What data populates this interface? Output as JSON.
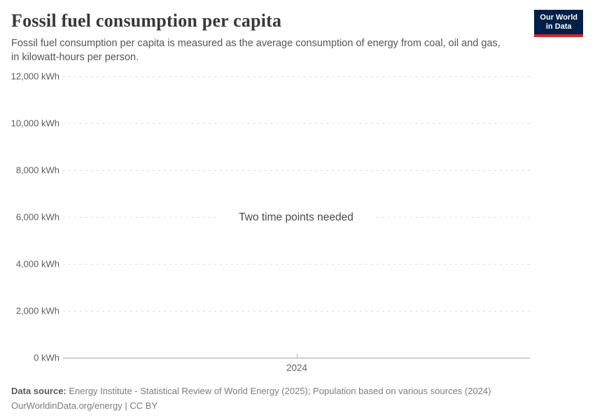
{
  "header": {
    "title": "Fossil fuel consumption per capita",
    "subtitle_lines": [
      "Fossil fuel consumption per capita is measured as the average consumption of energy from coal, oil and gas,",
      "in kilowatt-hours per person."
    ]
  },
  "logo": {
    "line1": "Our World",
    "line2": "in Data"
  },
  "chart_data": {
    "type": "line",
    "title": "Fossil fuel consumption per capita",
    "ylabel": "kWh",
    "ylim": [
      0,
      12000
    ],
    "grid": true,
    "empty_state_message": "Two time points needed",
    "yticks": [
      {
        "value": 12000,
        "label": "12,000 kWh"
      },
      {
        "value": 10000,
        "label": "10,000 kWh"
      },
      {
        "value": 8000,
        "label": "8,000 kWh"
      },
      {
        "value": 6000,
        "label": "6,000 kWh"
      },
      {
        "value": 4000,
        "label": "4,000 kWh"
      },
      {
        "value": 2000,
        "label": "2,000 kWh"
      },
      {
        "value": 0,
        "label": "0 kWh"
      }
    ],
    "xticks": [
      "2024"
    ],
    "series": []
  },
  "footer": {
    "source_label": "Data source:",
    "source_text": " Energy Institute - Statistical Review of World Energy (2025); Population based on various sources (2024)",
    "license_line": "OurWorldinData.org/energy | CC BY"
  },
  "colors": {
    "logo_background": "#002147",
    "logo_stripe": "#cf2a27",
    "gridline": "#dcdcdc",
    "axis_line": "#a3a3a3"
  }
}
